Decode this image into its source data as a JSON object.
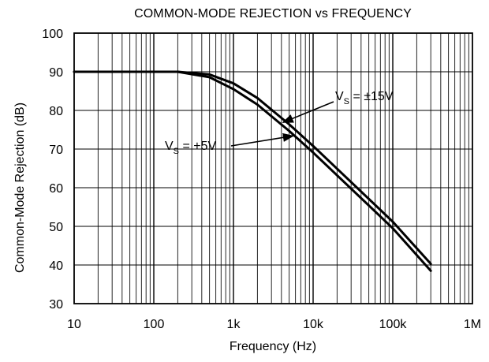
{
  "chart_data": {
    "type": "line",
    "title": "COMMON-MODE REJECTION vs FREQUENCY",
    "xlabel": "Frequency (Hz)",
    "ylabel": "Common-Mode Rejection (dB)",
    "x_scale": "log",
    "xlim": [
      10,
      1000000
    ],
    "ylim": [
      30,
      100
    ],
    "grid": true,
    "x_ticks": [
      {
        "value": 10,
        "label": "10"
      },
      {
        "value": 100,
        "label": "100"
      },
      {
        "value": 1000,
        "label": "1k"
      },
      {
        "value": 10000,
        "label": "10k"
      },
      {
        "value": 100000,
        "label": "100k"
      },
      {
        "value": 1000000,
        "label": "1M"
      }
    ],
    "y_ticks": [
      {
        "value": 30,
        "label": "30"
      },
      {
        "value": 40,
        "label": "40"
      },
      {
        "value": 50,
        "label": "50"
      },
      {
        "value": 60,
        "label": "60"
      },
      {
        "value": 70,
        "label": "70"
      },
      {
        "value": 80,
        "label": "80"
      },
      {
        "value": 90,
        "label": "90"
      },
      {
        "value": 100,
        "label": "100"
      }
    ],
    "series": [
      {
        "key": "vs15",
        "label_main": "V",
        "label_sub": "S",
        "label_rest": " = ±15V",
        "x": [
          10,
          100,
          200,
          500,
          1000,
          2000,
          5000,
          10000,
          100000,
          300000
        ],
        "y": [
          90,
          90,
          90,
          89.3,
          87,
          83.2,
          76.4,
          70.8,
          51.2,
          40.3
        ]
      },
      {
        "key": "vs5",
        "label_main": "V",
        "label_sub": "S",
        "label_rest": " = +5V",
        "x": [
          10,
          100,
          200,
          500,
          1000,
          2000,
          5000,
          10000,
          100000,
          300000
        ],
        "y": [
          90,
          90,
          90,
          88.6,
          85.5,
          81.5,
          74.7,
          69.1,
          49.5,
          38.5
        ]
      }
    ],
    "annotations": [
      {
        "series": "vs15",
        "text_x": 425,
        "text_y": 127,
        "arrow_to_x": 4200,
        "arrow_to_y": 76.9
      },
      {
        "series": "vs5",
        "text_x": 209,
        "text_y": 190,
        "arrow_to_x": 5600,
        "arrow_to_y": 73.4
      }
    ]
  }
}
